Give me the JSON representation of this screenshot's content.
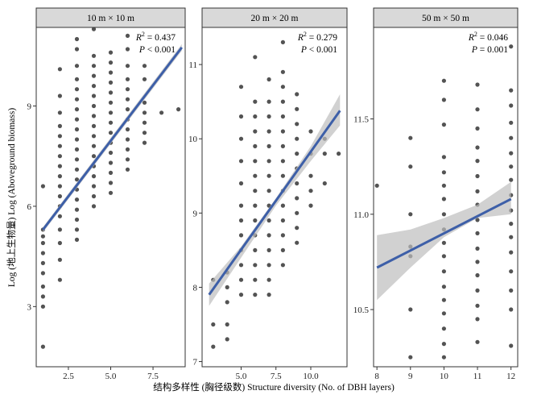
{
  "chart_data": [
    {
      "type": "scatter",
      "panel": "10 m × 10 m",
      "r2_label": "0.437",
      "p_label": "< 0.001",
      "xlim": [
        0.6,
        9.4
      ],
      "ylim": [
        1.2,
        11.35
      ],
      "xticks": [
        2.5,
        5.0,
        7.5
      ],
      "xtick_labels": [
        "2.5",
        "5.0",
        "7.5"
      ],
      "yticks": [
        3,
        6,
        9
      ],
      "ytick_labels": [
        "3",
        "6",
        "9"
      ],
      "fit": {
        "x": [
          1,
          9.2
        ],
        "y": [
          5.3,
          10.75
        ],
        "ci": [
          [
            1,
            5.22,
            5.38
          ],
          [
            9.2,
            10.65,
            10.85
          ]
        ]
      },
      "points": [
        [
          1,
          1.8
        ],
        [
          1,
          3.0
        ],
        [
          1,
          3.3
        ],
        [
          1,
          3.6
        ],
        [
          1,
          4.0
        ],
        [
          1,
          4.3
        ],
        [
          1,
          4.6
        ],
        [
          1,
          4.9
        ],
        [
          1,
          5.1
        ],
        [
          1,
          5.3
        ],
        [
          1,
          6.6
        ],
        [
          2,
          3.8
        ],
        [
          2,
          4.4
        ],
        [
          2,
          4.9
        ],
        [
          2,
          5.3
        ],
        [
          2,
          5.7
        ],
        [
          2,
          6.0
        ],
        [
          2,
          6.3
        ],
        [
          2,
          6.6
        ],
        [
          2,
          6.9
        ],
        [
          2,
          7.2
        ],
        [
          2,
          7.5
        ],
        [
          2,
          7.8
        ],
        [
          2,
          8.1
        ],
        [
          2,
          8.4
        ],
        [
          2,
          8.8
        ],
        [
          2,
          9.3
        ],
        [
          2,
          10.1
        ],
        [
          3,
          5.0
        ],
        [
          3,
          5.3
        ],
        [
          3,
          5.6
        ],
        [
          3,
          5.9
        ],
        [
          3,
          6.2
        ],
        [
          3,
          6.5
        ],
        [
          3,
          6.8
        ],
        [
          3,
          7.1
        ],
        [
          3,
          7.4
        ],
        [
          3,
          7.7
        ],
        [
          3,
          8.0
        ],
        [
          3,
          8.3
        ],
        [
          3,
          8.6
        ],
        [
          3,
          8.9
        ],
        [
          3,
          9.2
        ],
        [
          3,
          9.5
        ],
        [
          3,
          9.8
        ],
        [
          3,
          10.2
        ],
        [
          3,
          10.7
        ],
        [
          3,
          11.0
        ],
        [
          4,
          6.0
        ],
        [
          4,
          6.3
        ],
        [
          4,
          6.6
        ],
        [
          4,
          6.9
        ],
        [
          4,
          7.2
        ],
        [
          4,
          7.5
        ],
        [
          4,
          7.8
        ],
        [
          4,
          8.1
        ],
        [
          4,
          8.4
        ],
        [
          4,
          8.7
        ],
        [
          4,
          9.0
        ],
        [
          4,
          9.3
        ],
        [
          4,
          9.6
        ],
        [
          4,
          9.9
        ],
        [
          4,
          10.2
        ],
        [
          4,
          10.5
        ],
        [
          4,
          11.3
        ],
        [
          5,
          6.4
        ],
        [
          5,
          6.7
        ],
        [
          5,
          7.0
        ],
        [
          5,
          7.3
        ],
        [
          5,
          7.6
        ],
        [
          5,
          7.9
        ],
        [
          5,
          8.2
        ],
        [
          5,
          8.5
        ],
        [
          5,
          8.8
        ],
        [
          5,
          9.1
        ],
        [
          5,
          9.4
        ],
        [
          5,
          9.7
        ],
        [
          5,
          10.0
        ],
        [
          5,
          10.3
        ],
        [
          5,
          10.6
        ],
        [
          6,
          7.1
        ],
        [
          6,
          7.4
        ],
        [
          6,
          7.7
        ],
        [
          6,
          8.0
        ],
        [
          6,
          8.3
        ],
        [
          6,
          8.6
        ],
        [
          6,
          8.9
        ],
        [
          6,
          9.2
        ],
        [
          6,
          9.5
        ],
        [
          6,
          9.8
        ],
        [
          6,
          10.2
        ],
        [
          6,
          10.7
        ],
        [
          6,
          11.1
        ],
        [
          7,
          7.9
        ],
        [
          7,
          8.2
        ],
        [
          7,
          8.5
        ],
        [
          7,
          8.8
        ],
        [
          7,
          9.1
        ],
        [
          7,
          9.8
        ],
        [
          7,
          10.2
        ],
        [
          8,
          8.8
        ],
        [
          9,
          8.9
        ]
      ]
    },
    {
      "type": "scatter",
      "panel": "20 m × 20 m",
      "r2_label": "0.279",
      "p_label": "< 0.001",
      "xlim": [
        2.2,
        12.6
      ],
      "ylim": [
        6.93,
        11.5
      ],
      "xticks": [
        5.0,
        7.5,
        10.0
      ],
      "xtick_labels": [
        "5.0",
        "7.5",
        "10.0"
      ],
      "yticks": [
        7,
        8,
        9,
        10,
        11
      ],
      "ytick_labels": [
        "7",
        "8",
        "9",
        "10",
        "11"
      ],
      "fit": {
        "x": [
          2.7,
          12.1
        ],
        "y": [
          7.9,
          10.38
        ],
        "ci": [
          [
            2.7,
            7.75,
            8.05
          ],
          [
            5,
            8.4,
            8.55
          ],
          [
            7.5,
            9.1,
            9.2
          ],
          [
            10,
            9.7,
            9.9
          ],
          [
            12.1,
            10.18,
            10.6
          ]
        ]
      },
      "points": [
        [
          3,
          7.2
        ],
        [
          3,
          7.5
        ],
        [
          3,
          8.1
        ],
        [
          4,
          7.3
        ],
        [
          4,
          7.5
        ],
        [
          4,
          7.8
        ],
        [
          4,
          8.0
        ],
        [
          4,
          8.2
        ],
        [
          5,
          7.9
        ],
        [
          5,
          8.1
        ],
        [
          5,
          8.3
        ],
        [
          5,
          8.5
        ],
        [
          5,
          8.7
        ],
        [
          5,
          8.9
        ],
        [
          5,
          9.1
        ],
        [
          5,
          9.4
        ],
        [
          5,
          9.7
        ],
        [
          5,
          10.0
        ],
        [
          5,
          10.3
        ],
        [
          5,
          10.7
        ],
        [
          6,
          7.9
        ],
        [
          6,
          8.1
        ],
        [
          6,
          8.3
        ],
        [
          6,
          8.5
        ],
        [
          6,
          8.7
        ],
        [
          6,
          8.9
        ],
        [
          6,
          9.1
        ],
        [
          6,
          9.3
        ],
        [
          6,
          9.5
        ],
        [
          6,
          9.7
        ],
        [
          6,
          9.9
        ],
        [
          6,
          10.1
        ],
        [
          6,
          10.3
        ],
        [
          6,
          10.5
        ],
        [
          6,
          11.1
        ],
        [
          7,
          7.9
        ],
        [
          7,
          8.1
        ],
        [
          7,
          8.3
        ],
        [
          7,
          8.5
        ],
        [
          7,
          8.7
        ],
        [
          7,
          8.9
        ],
        [
          7,
          9.1
        ],
        [
          7,
          9.3
        ],
        [
          7,
          9.5
        ],
        [
          7,
          9.7
        ],
        [
          7,
          9.9
        ],
        [
          7,
          10.1
        ],
        [
          7,
          10.3
        ],
        [
          7,
          10.5
        ],
        [
          7,
          10.8
        ],
        [
          8,
          8.3
        ],
        [
          8,
          8.5
        ],
        [
          8,
          8.7
        ],
        [
          8,
          8.9
        ],
        [
          8,
          9.1
        ],
        [
          8,
          9.3
        ],
        [
          8,
          9.5
        ],
        [
          8,
          9.7
        ],
        [
          8,
          9.9
        ],
        [
          8,
          10.1
        ],
        [
          8,
          10.3
        ],
        [
          8,
          10.5
        ],
        [
          8,
          10.7
        ],
        [
          8,
          10.9
        ],
        [
          8,
          11.3
        ],
        [
          9,
          8.6
        ],
        [
          9,
          8.8
        ],
        [
          9,
          9.0
        ],
        [
          9,
          9.2
        ],
        [
          9,
          9.4
        ],
        [
          9,
          9.6
        ],
        [
          9,
          9.8
        ],
        [
          9,
          10.0
        ],
        [
          9,
          10.2
        ],
        [
          9,
          10.4
        ],
        [
          9,
          10.6
        ],
        [
          10,
          9.1
        ],
        [
          10,
          9.3
        ],
        [
          10,
          9.5
        ],
        [
          10,
          9.8
        ],
        [
          10,
          10.1
        ],
        [
          11,
          9.4
        ],
        [
          11,
          9.8
        ],
        [
          11,
          10.0
        ],
        [
          12,
          9.8
        ]
      ]
    },
    {
      "type": "scatter",
      "panel": "50 m × 50 m",
      "r2_label": "0.046",
      "p_label": "= 0.001",
      "xlim": [
        7.9,
        12.2
      ],
      "ylim": [
        10.2,
        11.98
      ],
      "xticks": [
        8,
        9,
        10,
        11,
        12
      ],
      "xtick_labels": [
        "8",
        "9",
        "10",
        "11",
        "12"
      ],
      "yticks": [
        10.5,
        11.0,
        11.5
      ],
      "ytick_labels": [
        "10.5",
        "11.0",
        "11.5"
      ],
      "fit": {
        "x": [
          8,
          12
        ],
        "y": [
          10.72,
          11.08
        ],
        "ci": [
          [
            8,
            10.55,
            10.89
          ],
          [
            9,
            10.72,
            10.92
          ],
          [
            10,
            10.88,
            10.98
          ],
          [
            11,
            10.98,
            11.05
          ],
          [
            12,
            11.0,
            11.17
          ]
        ]
      },
      "points": [
        [
          8,
          11.15
        ],
        [
          9,
          10.25
        ],
        [
          9,
          10.5
        ],
        [
          9,
          10.78
        ],
        [
          9,
          10.83
        ],
        [
          9,
          11.0
        ],
        [
          9,
          11.25
        ],
        [
          9,
          11.4
        ],
        [
          10,
          10.25
        ],
        [
          10,
          10.32
        ],
        [
          10,
          10.4
        ],
        [
          10,
          10.48
        ],
        [
          10,
          10.55
        ],
        [
          10,
          10.62
        ],
        [
          10,
          10.7
        ],
        [
          10,
          10.78
        ],
        [
          10,
          10.85
        ],
        [
          10,
          10.92
        ],
        [
          10,
          11.0
        ],
        [
          10,
          11.08
        ],
        [
          10,
          11.15
        ],
        [
          10,
          11.22
        ],
        [
          10,
          11.3
        ],
        [
          10,
          11.47
        ],
        [
          10,
          11.6
        ],
        [
          10,
          11.7
        ],
        [
          11,
          10.33
        ],
        [
          11,
          10.45
        ],
        [
          11,
          10.52
        ],
        [
          11,
          10.6
        ],
        [
          11,
          10.68
        ],
        [
          11,
          10.75
        ],
        [
          11,
          10.82
        ],
        [
          11,
          10.9
        ],
        [
          11,
          10.97
        ],
        [
          11,
          11.05
        ],
        [
          11,
          11.12
        ],
        [
          11,
          11.2
        ],
        [
          11,
          11.28
        ],
        [
          11,
          11.35
        ],
        [
          11,
          11.45
        ],
        [
          11,
          11.55
        ],
        [
          11,
          11.68
        ],
        [
          12,
          10.31
        ],
        [
          12,
          10.5
        ],
        [
          12,
          10.6
        ],
        [
          12,
          10.7
        ],
        [
          12,
          10.8
        ],
        [
          12,
          10.88
        ],
        [
          12,
          10.95
        ],
        [
          12,
          11.02
        ],
        [
          12,
          11.1
        ],
        [
          12,
          11.18
        ],
        [
          12,
          11.25
        ],
        [
          12,
          11.32
        ],
        [
          12,
          11.4
        ],
        [
          12,
          11.48
        ],
        [
          12,
          11.57
        ],
        [
          12,
          11.65
        ],
        [
          12,
          11.88
        ]
      ]
    }
  ],
  "axes": {
    "x_title": "结构多样性 (胸径级数) Structure diversity (No. of DBH layers)",
    "y_title": "Log (地上生物量) Log (Aboveground biomass)"
  },
  "annotation": {
    "r2_prefix": "R",
    "r2_sup": "2",
    "r2_eq": " = ",
    "p_prefix": "P",
    "p_sep": " "
  },
  "colors": {
    "points": "#1a1a1a",
    "fit_line": "#3d5fa8",
    "ci_band": "#bdbdbd",
    "strip_fill": "#d9d9d9",
    "panel_border": "#333333"
  }
}
